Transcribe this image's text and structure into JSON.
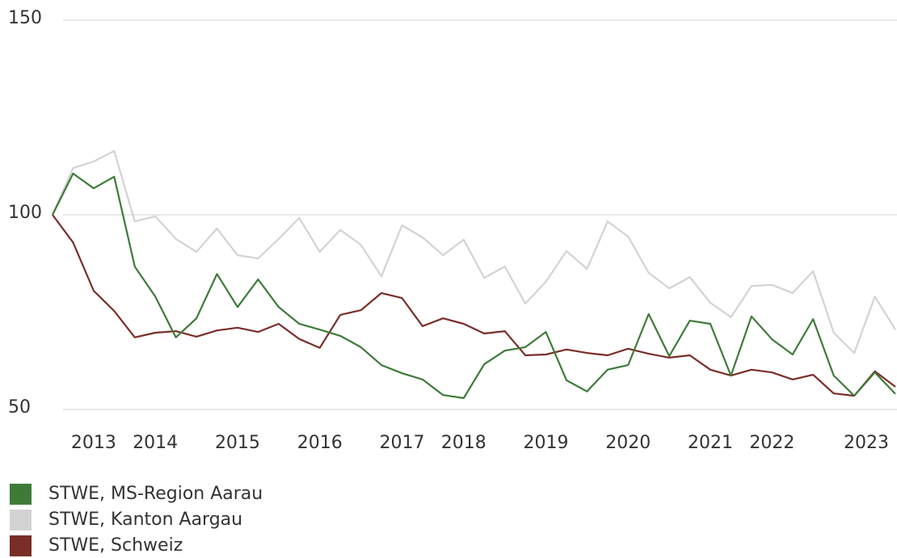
{
  "chart_data": {
    "type": "line",
    "categories": [
      null,
      null,
      "2013",
      null,
      null,
      "2014",
      null,
      null,
      null,
      "2015",
      null,
      null,
      null,
      "2016",
      null,
      null,
      null,
      "2017",
      null,
      null,
      "2018",
      null,
      null,
      null,
      "2019",
      null,
      null,
      null,
      "2020",
      null,
      null,
      null,
      "2021",
      null,
      null,
      "2022",
      null,
      null,
      null,
      null,
      "2023",
      null
    ],
    "series": [
      {
        "name": "STWE, MS-Region Aarau",
        "color": "#3e7b39",
        "values": [
          100,
          110.6,
          106.8,
          109.8,
          86.7,
          79,
          68.5,
          73.4,
          84.8,
          76.3,
          83.4,
          76.3,
          72,
          70.5,
          68.9,
          66,
          61.4,
          59.3,
          57.7,
          53.7,
          52.9,
          61.6,
          65.1,
          66,
          69.9,
          57.5,
          54.6,
          60.2,
          61.4,
          74.5,
          63.7,
          72.8,
          72,
          58.7,
          73.9,
          68,
          64.1,
          73.2,
          58.7,
          53.5,
          59.5,
          54
        ]
      },
      {
        "name": "STWE, Kanton Aargau",
        "color": "#d3d3d3",
        "values": [
          100,
          112,
          113.7,
          116.4,
          98.3,
          99.6,
          93.8,
          90.5,
          96.5,
          89.6,
          88.8,
          93.8,
          99.2,
          90.5,
          96.1,
          92.3,
          84.2,
          97.3,
          94.2,
          89.6,
          93.6,
          83.8,
          86.7,
          77.2,
          82.8,
          90.7,
          86.1,
          98.3,
          94.4,
          85.1,
          81.1,
          84,
          77.4,
          73.7,
          81.7,
          82,
          79.9,
          85.5,
          69.7,
          64.5,
          79,
          70.5
        ]
      },
      {
        "name": "STWE, Schweiz",
        "color": "#7a2e28",
        "values": [
          100,
          92.9,
          80.5,
          75.3,
          68.5,
          69.7,
          70.1,
          68.7,
          70.3,
          71,
          69.9,
          72,
          68.1,
          65.8,
          74.3,
          75.5,
          79.9,
          78.6,
          71.4,
          73.4,
          72,
          69.5,
          70.1,
          63.9,
          64.1,
          65.4,
          64.5,
          63.9,
          65.6,
          64.3,
          63.3,
          63.9,
          60.2,
          58.7,
          60.2,
          59.5,
          57.7,
          58.9,
          54.1,
          53.5,
          59.8,
          55.8
        ]
      }
    ],
    "ylim": [
      50,
      150
    ],
    "yticks": [
      50,
      100,
      150
    ],
    "grid": true,
    "legend": "bottom-left"
  }
}
